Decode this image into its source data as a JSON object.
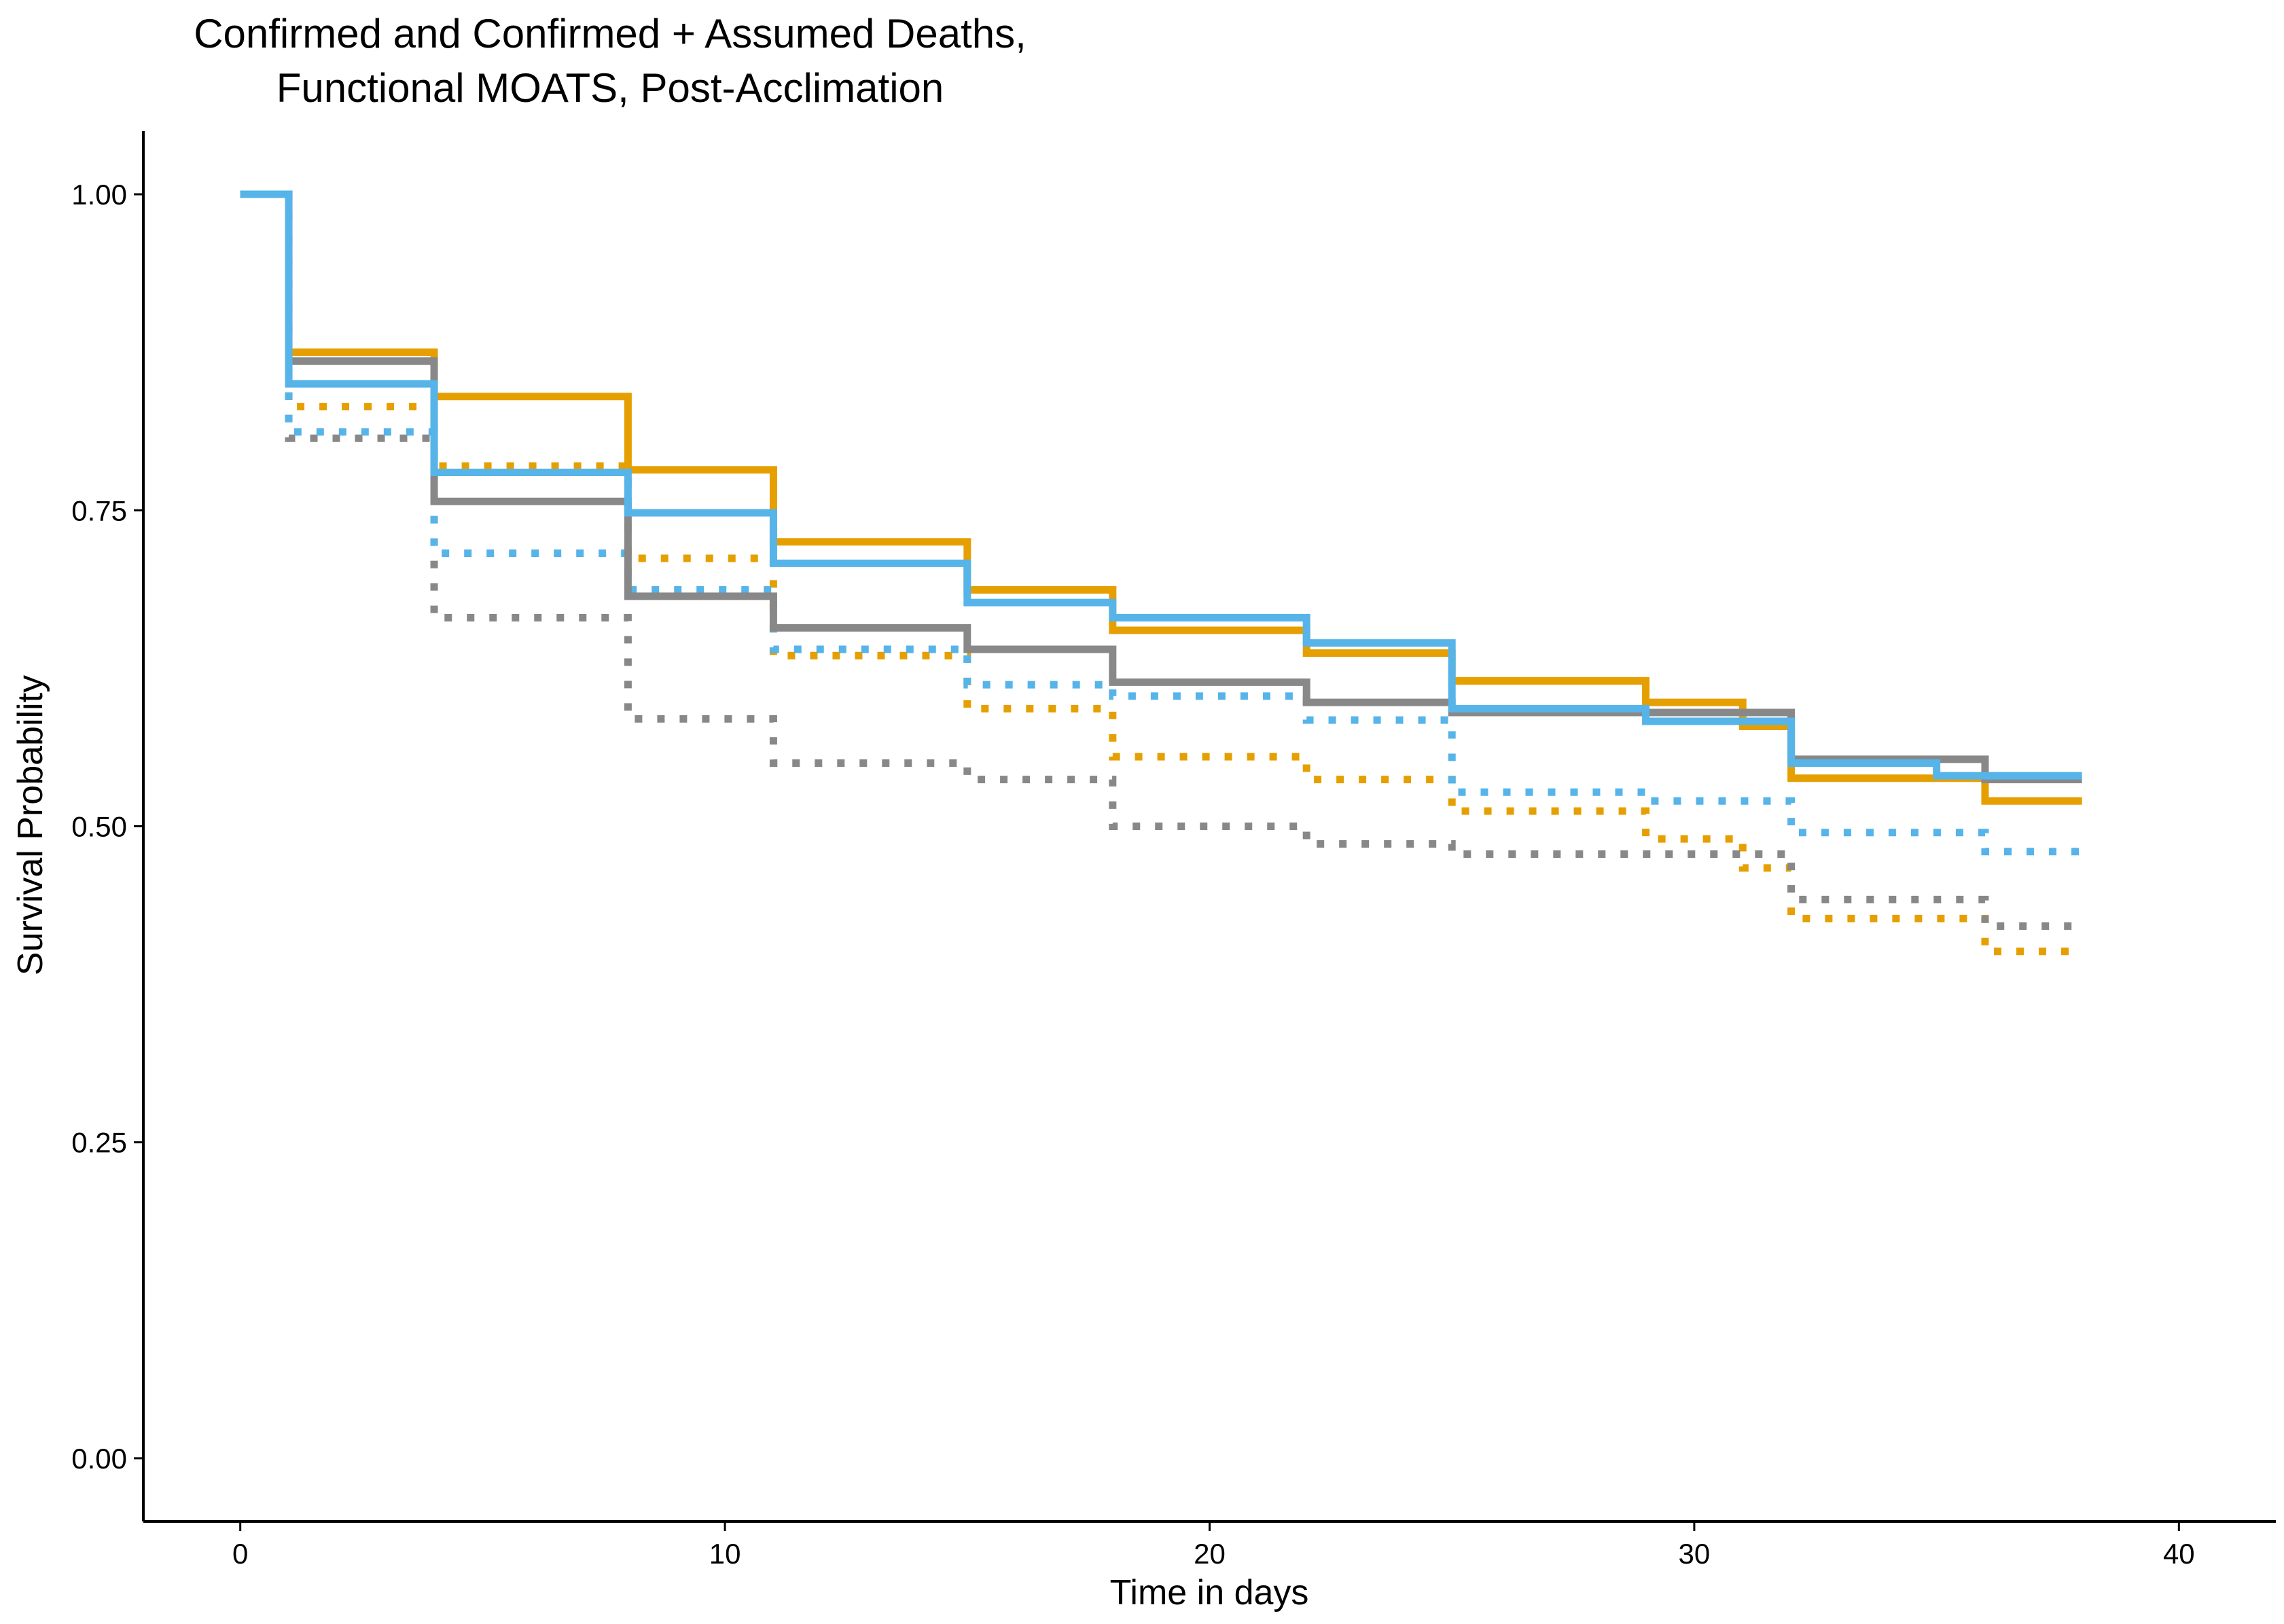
{
  "chart_data": {
    "type": "line",
    "title_lines": [
      "Confirmed and Confirmed + Assumed Deaths,",
      "Functional MOATS, Post-Acclimation"
    ],
    "xlabel": "Time in days",
    "ylabel": "Survival Probability",
    "xlim": [
      -2,
      42
    ],
    "ylim": [
      -0.05,
      1.05
    ],
    "xticks": [
      0,
      10,
      20,
      30,
      40
    ],
    "xtick_labels": [
      "0",
      "10",
      "20",
      "30",
      "40"
    ],
    "yticks": [
      0,
      0.25,
      0.5,
      0.75,
      1.0
    ],
    "ytick_labels": [
      "0.00",
      "0.25",
      "0.50",
      "0.75",
      "1.00"
    ],
    "grid": false,
    "legend": "none",
    "series": [
      {
        "color": "#E69F00",
        "linestyle": "solid",
        "x": [
          0,
          1,
          4,
          8,
          11,
          15,
          18,
          22,
          25,
          29,
          31,
          32,
          36,
          38
        ],
        "y": [
          1.0,
          0.875,
          0.84,
          0.782,
          0.725,
          0.687,
          0.655,
          0.637,
          0.615,
          0.598,
          0.579,
          0.538,
          0.52,
          0.52
        ]
      },
      {
        "color": "#888888",
        "linestyle": "solid",
        "x": [
          0,
          1,
          4,
          8,
          11,
          15,
          18,
          22,
          25,
          29,
          32,
          36,
          38
        ],
        "y": [
          1.0,
          0.868,
          0.757,
          0.682,
          0.657,
          0.64,
          0.614,
          0.598,
          0.59,
          0.59,
          0.553,
          0.537,
          0.537
        ]
      },
      {
        "color": "#56B4E9",
        "linestyle": "solid",
        "x": [
          0,
          1,
          4,
          8,
          11,
          15,
          18,
          22,
          25,
          29,
          32,
          35,
          38
        ],
        "y": [
          1.0,
          0.85,
          0.78,
          0.748,
          0.708,
          0.677,
          0.665,
          0.645,
          0.593,
          0.583,
          0.55,
          0.54,
          0.54
        ]
      },
      {
        "color": "#E69F00",
        "linestyle": "dotted",
        "x": [
          0,
          1,
          4,
          8,
          11,
          15,
          18,
          22,
          25,
          29,
          31,
          32,
          36,
          38
        ],
        "y": [
          1.0,
          0.832,
          0.785,
          0.712,
          0.635,
          0.593,
          0.555,
          0.537,
          0.512,
          0.49,
          0.467,
          0.427,
          0.401,
          0.401
        ]
      },
      {
        "color": "#888888",
        "linestyle": "dotted",
        "x": [
          0,
          1,
          4,
          8,
          11,
          15,
          18,
          22,
          25,
          31,
          32,
          36,
          38
        ],
        "y": [
          1.0,
          0.807,
          0.665,
          0.585,
          0.55,
          0.537,
          0.5,
          0.486,
          0.478,
          0.478,
          0.442,
          0.421,
          0.421
        ]
      },
      {
        "color": "#56B4E9",
        "linestyle": "dotted",
        "x": [
          0,
          1,
          4,
          8,
          11,
          15,
          18,
          22,
          25,
          29,
          32,
          36,
          38
        ],
        "y": [
          1.0,
          0.812,
          0.716,
          0.687,
          0.64,
          0.612,
          0.603,
          0.584,
          0.527,
          0.52,
          0.495,
          0.48,
          0.48
        ]
      }
    ]
  }
}
